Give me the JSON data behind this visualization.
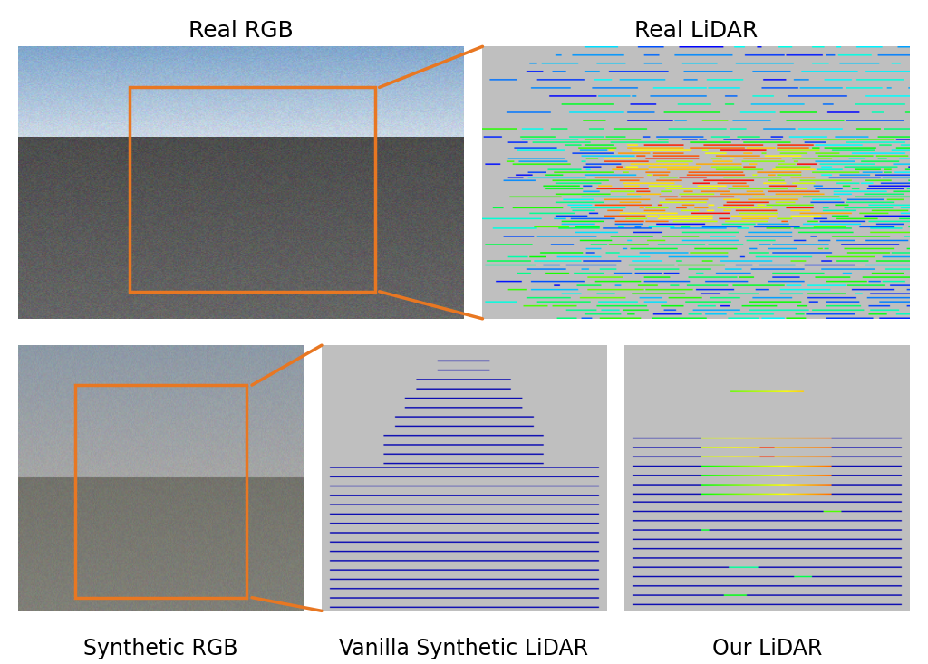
{
  "title_real_rgb": "Real RGB",
  "title_real_lidar": "Real LiDAR",
  "title_synth_rgb": "Synthetic RGB",
  "title_vanilla_lidar": "Vanilla Synthetic LiDAR",
  "title_our_lidar": "Our LiDAR",
  "bg_color": "#ffffff",
  "lidar_bg": "#c0c0c0",
  "lidar_blue": "#0000cc",
  "title_fontsize": 18,
  "label_fontsize": 17,
  "orange_color": "#e87722",
  "fig_width": 10.24,
  "fig_height": 7.33
}
